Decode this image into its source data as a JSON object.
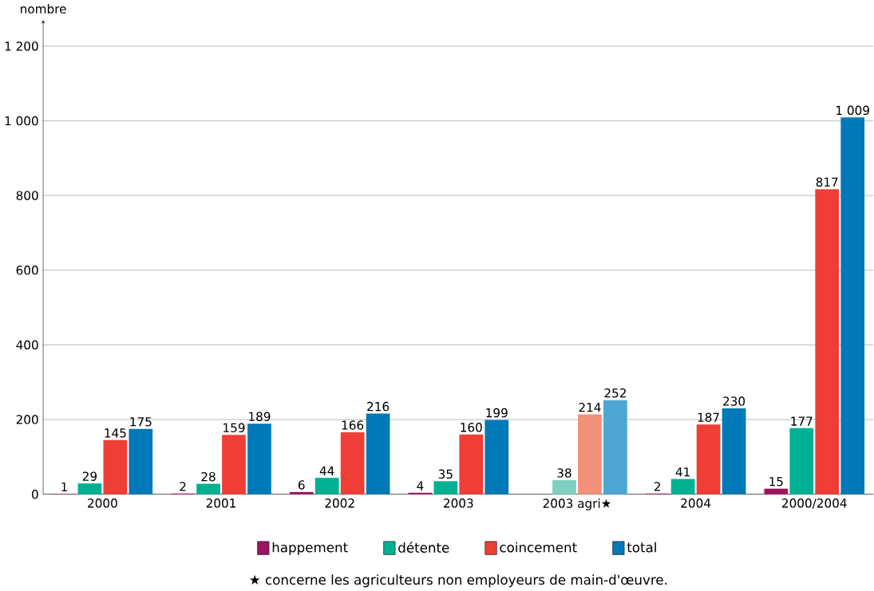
{
  "chart_data": {
    "type": "bar",
    "ylabel": "nombre",
    "categories": [
      "2000",
      "2001",
      "2002",
      "2003",
      "2003 agri★",
      "2004",
      "2000/2004"
    ],
    "series": [
      {
        "name": "happement",
        "color": "#9b1560",
        "values": [
          1,
          2,
          6,
          4,
          null,
          2,
          15
        ],
        "value_labels": [
          "1",
          "2",
          "6",
          "4",
          null,
          "2",
          "15"
        ]
      },
      {
        "name": "détente",
        "color": "#00b092",
        "colors": [
          "#00b092",
          "#00b092",
          "#00b092",
          "#00b092",
          "#7fd0bf",
          "#00b092",
          "#00b092"
        ],
        "values": [
          29,
          28,
          44,
          35,
          38,
          41,
          177
        ],
        "value_labels": [
          "29",
          "28",
          "44",
          "35",
          "38",
          "41",
          "177"
        ]
      },
      {
        "name": "coincement",
        "color": "#ee3e36",
        "colors": [
          "#ee3e36",
          "#ee3e36",
          "#ee3e36",
          "#ee3e36",
          "#f4917a",
          "#ee3e36",
          "#ee3e36"
        ],
        "values": [
          145,
          159,
          166,
          160,
          214,
          187,
          817
        ],
        "value_labels": [
          "145",
          "159",
          "166",
          "160",
          "214",
          "187",
          "817"
        ]
      },
      {
        "name": "total",
        "color": "#0079b8",
        "colors": [
          "#0079b8",
          "#0079b8",
          "#0079b8",
          "#0079b8",
          "#4ea6d3",
          "#0079b8",
          "#0079b8"
        ],
        "values": [
          175,
          189,
          216,
          199,
          252,
          230,
          1009
        ],
        "value_labels": [
          "175",
          "189",
          "216",
          "199",
          "252",
          "230",
          "1 009"
        ]
      }
    ],
    "ylim": [
      0,
      1270
    ],
    "yticks": [
      0,
      200,
      400,
      600,
      800,
      {
        "value": 1000,
        "label": "1 000"
      },
      {
        "value": 1200,
        "label": "1 200"
      }
    ],
    "grid": "y",
    "legend": "bottom",
    "annotations": [
      "★ concerne les agriculteurs non employeurs de main-d'œuvre."
    ]
  }
}
